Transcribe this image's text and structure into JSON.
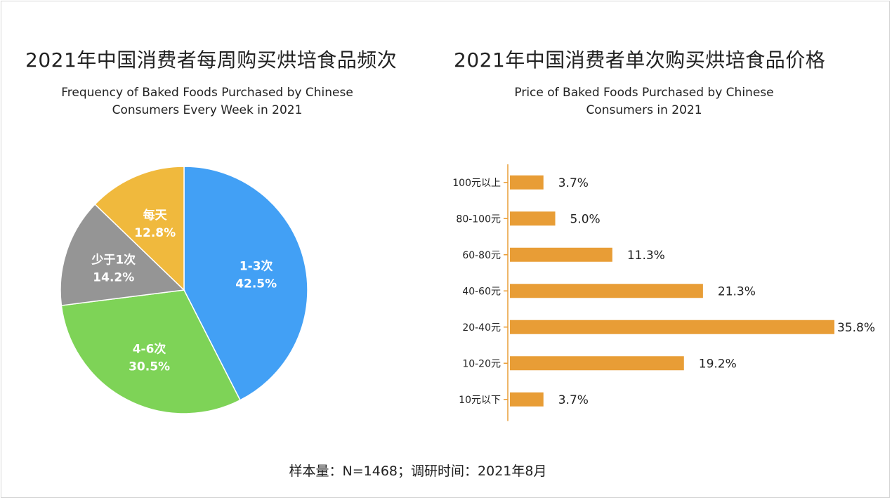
{
  "footer": "样本量：N=1468；调研时间：2021年8月",
  "chart_data": [
    {
      "type": "pie",
      "title": "2021年中国消费者每周购买烘培食品频次",
      "subtitle_lines": [
        "Frequency of Baked Foods Purchased by Chinese",
        "Consumers Every Week in 2021"
      ],
      "slices": [
        {
          "label": "1-3次",
          "value": 42.5,
          "value_label": "42.5%",
          "color": "#42a0f5"
        },
        {
          "label": "4-6次",
          "value": 30.5,
          "value_label": "30.5%",
          "color": "#7ed357"
        },
        {
          "label": "少于1次",
          "value": 14.2,
          "value_label": "14.2%",
          "color": "#959595"
        },
        {
          "label": "每天",
          "value": 12.8,
          "value_label": "12.8%",
          "color": "#f0b93d"
        }
      ]
    },
    {
      "type": "bar",
      "orientation": "horizontal",
      "title": "2021年中国消费者单次购买烘培食品价格",
      "subtitle_lines": [
        "Price of Baked Foods Purchased by Chinese",
        "Consumers in 2021"
      ],
      "categories": [
        "100元以上",
        "80-100元",
        "60-80元",
        "40-60元",
        "20-40元",
        "10-20元",
        "10元以下"
      ],
      "values": [
        3.7,
        5.0,
        11.3,
        21.3,
        35.8,
        19.2,
        3.7
      ],
      "value_labels": [
        "3.7%",
        "5.0%",
        "11.3%",
        "21.3%",
        "35.8%",
        "19.2%",
        "3.7%"
      ],
      "color": "#e89d36"
    }
  ]
}
